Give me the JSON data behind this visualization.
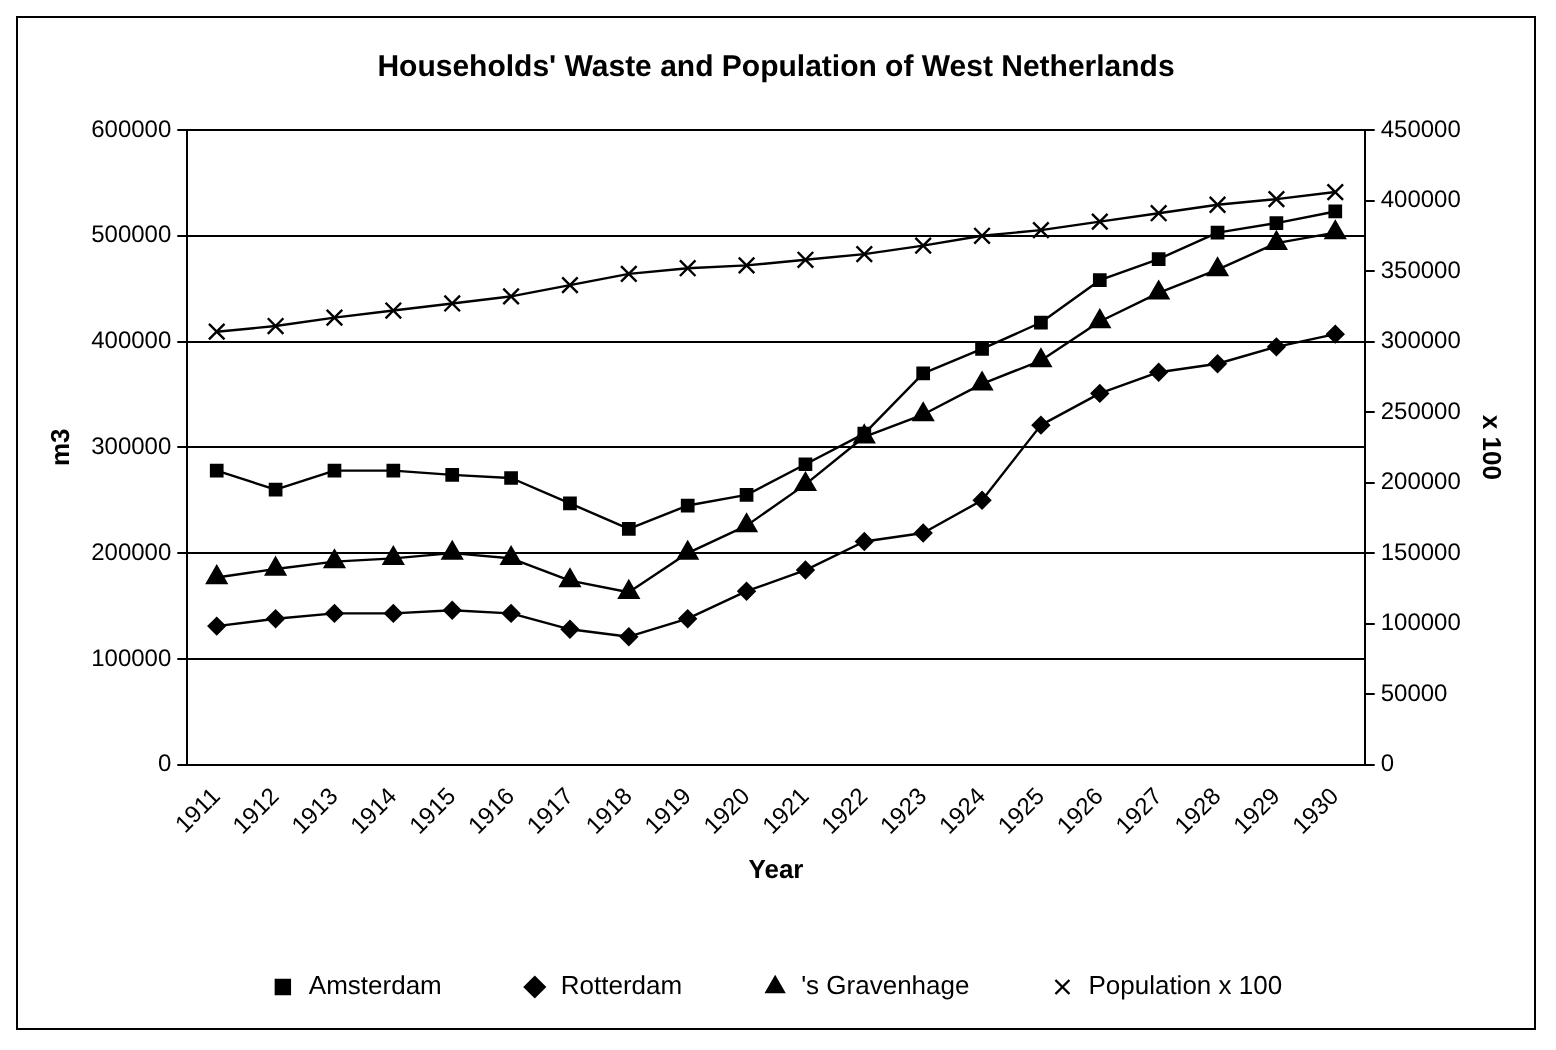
{
  "chart_data": {
    "type": "line",
    "title": "Households' Waste and Population of West Netherlands",
    "xlabel": "Year",
    "ylabel": "m3",
    "y2label": "x 100",
    "categories": [
      "1911",
      "1912",
      "1913",
      "1914",
      "1915",
      "1916",
      "1917",
      "1918",
      "1919",
      "1920",
      "1921",
      "1922",
      "1923",
      "1924",
      "1925",
      "1926",
      "1927",
      "1928",
      "1929",
      "1930"
    ],
    "series": [
      {
        "name": "Amsterdam",
        "color": "#000000",
        "marker": "square",
        "values": [
          278000,
          260000,
          278000,
          278000,
          274000,
          271000,
          247000,
          223000,
          245000,
          255000,
          284000,
          313000,
          370000,
          393000,
          418000,
          458000,
          478000,
          503000,
          512000,
          523000
        ]
      },
      {
        "name": "Rotterdam",
        "color": "#000000",
        "marker": "diamond",
        "values": [
          131000,
          138000,
          143000,
          143000,
          146000,
          143000,
          128000,
          121000,
          138000,
          164000,
          184000,
          211000,
          219000,
          250000,
          321000,
          351000,
          371000,
          379000,
          395000,
          407000
        ]
      },
      {
        "name": "'s Gravenhage",
        "color": "#000000",
        "marker": "triangle",
        "values": [
          177000,
          185000,
          192000,
          195000,
          200000,
          195000,
          174000,
          163000,
          200000,
          226000,
          265000,
          310000,
          331000,
          360000,
          382000,
          419000,
          446000,
          468000,
          493000,
          503000
        ]
      },
      {
        "name": "Population x 100",
        "color": "#000000",
        "marker": "cross",
        "axis": "y2",
        "values": [
          307000,
          311000,
          317000,
          322000,
          327000,
          332000,
          340000,
          348000,
          352000,
          354000,
          358000,
          362000,
          368000,
          375000,
          379000,
          385000,
          391000,
          397000,
          401000,
          406000
        ]
      }
    ],
    "ylim": [
      0,
      600000
    ],
    "yticks": [
      0,
      100000,
      200000,
      300000,
      400000,
      500000,
      600000
    ],
    "y2lim": [
      0,
      450000
    ],
    "y2ticks": [
      0,
      50000,
      100000,
      150000,
      200000,
      250000,
      300000,
      350000,
      400000,
      450000
    ],
    "grid": "y",
    "legend": "bottom"
  }
}
